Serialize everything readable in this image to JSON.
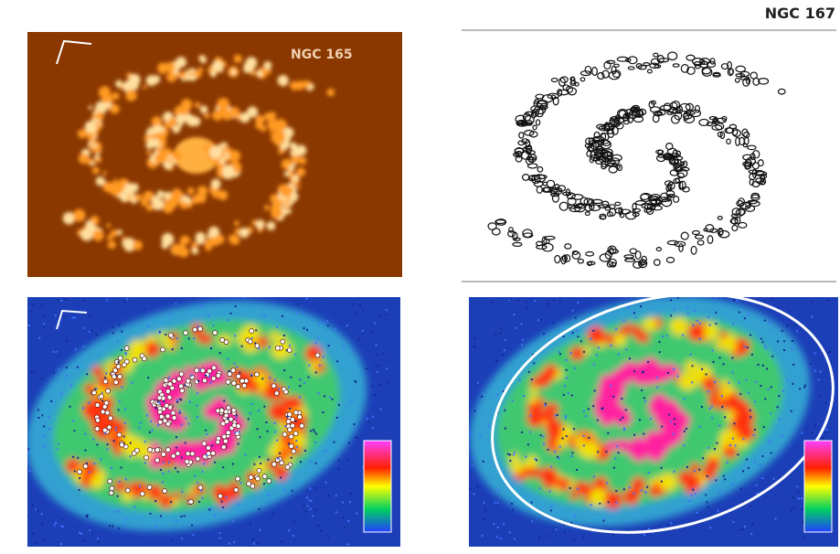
{
  "header": {
    "title": "NGC 167"
  },
  "panels": [
    {
      "label": "NGC 165"
    }
  ]
}
